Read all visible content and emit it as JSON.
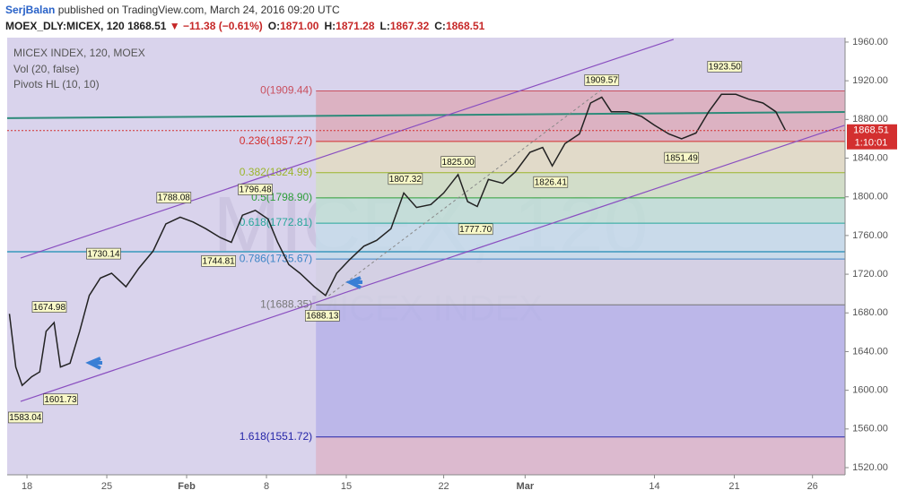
{
  "header": {
    "author": "SerjBalan",
    "published": "published on TradingView.com, March 24, 2016 09:20 UTC",
    "symbol": "MOEX_DLY:MICEX, 120",
    "price": "1868.51",
    "change": "▼ −11.38 (−0.61%)",
    "ohlc": [
      {
        "label": "O:",
        "value": "1871.00"
      },
      {
        "label": "H:",
        "value": "1871.28"
      },
      {
        "label": "L:",
        "value": "1867.32"
      },
      {
        "label": "C:",
        "value": "1868.51"
      }
    ]
  },
  "chart_data": {
    "type": "line",
    "legend_lines": [
      "MICEX INDEX, 120, MOEX",
      "Vol (20, false)",
      "Pivots HL (10, 10)"
    ],
    "watermark": "MICEX, 120",
    "watermark_sub": "MICEX INDEX",
    "color": "#222222",
    "x": [
      -1.1,
      -0.7,
      -0.3,
      0.3,
      0.8,
      1.2,
      1.7,
      2.1,
      2.7,
      3.3,
      3.9,
      4.6,
      5.3,
      6.2,
      7.0,
      7.9,
      8.7,
      9.6,
      10.4,
      11.2,
      12.1,
      12.8,
      13.5,
      14.3,
      15.1,
      15.7,
      16.4,
      17.1,
      18.0,
      18.7,
      19.4,
      20.2,
      21.1,
      21.9,
      22.8,
      23.6,
      24.4,
      25.3,
      26.1,
      27.0,
      27.6,
      28.2,
      28.9,
      29.8,
      30.6,
      31.5,
      32.3,
      32.9,
      33.7,
      34.6,
      35.3,
      36.0,
      36.6,
      37.6,
      38.5,
      39.3,
      40.2,
      41.0,
      41.9,
      42.7,
      43.5,
      44.4,
      45.2,
      46.1,
      46.9,
      47.5
    ],
    "values": [
      1679,
      1624,
      1605,
      1614,
      1619,
      1661,
      1670,
      1624,
      1628,
      1661,
      1698,
      1716,
      1721,
      1707,
      1726,
      1744,
      1772,
      1779,
      1774,
      1767,
      1758,
      1753,
      1781,
      1786,
      1777,
      1753,
      1730,
      1721,
      1707,
      1698,
      1721,
      1735,
      1749,
      1755,
      1767,
      1804,
      1789,
      1792,
      1804,
      1823,
      1795,
      1790,
      1818,
      1814,
      1826,
      1846,
      1851,
      1832,
      1855,
      1865,
      1897,
      1903,
      1888,
      1888,
      1883,
      1874,
      1865,
      1860,
      1866,
      1888,
      1906,
      1906,
      1901,
      1897,
      1888,
      1869
    ],
    "pivots": {
      "x": [
        -0.1,
        1.4,
        2.1,
        4.8,
        9.2,
        12.0,
        14.3,
        18.5,
        23.7,
        27.0,
        28.1,
        32.8,
        36.0,
        41.0,
        43.7
      ],
      "values": [
        1583.04,
        1674.98,
        1601.73,
        1730.14,
        1788.08,
        1744.81,
        1796.48,
        1688.13,
        1807.32,
        1825.0,
        1777.7,
        1826.41,
        1909.57,
        1851.49,
        1923.5
      ],
      "value_labels": [
        "1583.04",
        "1674.98",
        "1601.73",
        "1730.14",
        "1788.08",
        "1744.81",
        "1796.48",
        "1688.13",
        "1807.32",
        "1825.00",
        "1777.70",
        "1826.41",
        "1909.57",
        "1851.49",
        "1923.50"
      ],
      "sides": [
        "low",
        "high",
        "low",
        "high",
        "high",
        "low",
        "high",
        "low",
        "high",
        "high",
        "low",
        "low",
        "high",
        "low",
        "high"
      ]
    },
    "fib_start_x": 18.1,
    "fib_levels": [
      {
        "label": "0(1909.44)",
        "value": 1909.44,
        "color": "#c9505f",
        "fill": "#dcaab8"
      },
      {
        "label": "0.236(1857.27)",
        "value": 1857.27,
        "color": "#d32f2f",
        "fill": "#e2dcc0"
      },
      {
        "label": "0.382(1824.99)",
        "value": 1824.99,
        "color": "#9bb52c",
        "fill": "#cfe0c0"
      },
      {
        "label": "0.5(1798.90)",
        "value": 1798.9,
        "color": "#2e9e3a",
        "fill": "#bfe0d4"
      },
      {
        "label": "0.618(1772.81)",
        "value": 1772.81,
        "color": "#26a69a",
        "fill": "#c4dcea"
      },
      {
        "label": "0.786(1735.67)",
        "value": 1735.67,
        "color": "#3d85c6",
        "fill": "#d2d0e2"
      },
      {
        "label": "1(1688.35)",
        "value": 1688.35,
        "color": "#777777",
        "fill": "#b4b0e8"
      },
      {
        "label": "1.618(1551.72)",
        "value": 1551.72,
        "color": "#2424a8",
        "fill": "#dcb4c8"
      }
    ],
    "channel": {
      "color": "#8a4fc0",
      "upper": {
        "x": [
          -0.4,
          40.5
        ],
        "y": [
          1736.7,
          1962.8
        ]
      },
      "lower": {
        "x": [
          -0.4,
          51.2
        ],
        "y": [
          1588.5,
          1873.9
        ]
      }
    },
    "hlines": [
      {
        "x": [
          -1.24,
          51.24
        ],
        "y": [
          1881.3,
          1887.7
        ],
        "color": "#2e8b7a"
      },
      {
        "x": [
          -1.24,
          51.24
        ],
        "y": [
          1743.2,
          1743.2
        ],
        "color": "#5fa8c8"
      }
    ],
    "trend": {
      "x": [
        18.9,
        36.0
      ],
      "y": [
        1697.8,
        1910.9
      ]
    },
    "last_price": {
      "value": 1868.51,
      "label": "1868.51",
      "color": "#d32f2f"
    },
    "countdown": "1:10:01",
    "xlim": [
      -1.24,
      51.24
    ],
    "ylim": [
      1512.6,
      1964.6
    ],
    "xticks": [
      {
        "value": 0,
        "label": "18"
      },
      {
        "value": 5,
        "label": "25"
      },
      {
        "value": 10,
        "label": "Feb"
      },
      {
        "value": 15,
        "label": "8"
      },
      {
        "value": 20,
        "label": "15"
      },
      {
        "value": 26.1,
        "label": "22"
      },
      {
        "value": 31.2,
        "label": "Mar"
      },
      {
        "value": 39.3,
        "label": "14"
      },
      {
        "value": 44.3,
        "label": "21"
      },
      {
        "value": 49.2,
        "label": "26"
      }
    ],
    "yticks": [
      {
        "value": 1520,
        "label": "1520.00"
      },
      {
        "value": 1560,
        "label": "1560.00"
      },
      {
        "value": 1600,
        "label": "1600.00"
      },
      {
        "value": 1640,
        "label": "1640.00"
      },
      {
        "value": 1680,
        "label": "1680.00"
      },
      {
        "value": 1720,
        "label": "1720.00"
      },
      {
        "value": 1760,
        "label": "1760.00"
      },
      {
        "value": 1800,
        "label": "1800.00"
      },
      {
        "value": 1840,
        "label": "1840.00"
      },
      {
        "value": 1880,
        "label": "1880.00"
      },
      {
        "value": 1920,
        "label": "1920.00"
      },
      {
        "value": 1960,
        "label": "1960.00"
      }
    ]
  }
}
